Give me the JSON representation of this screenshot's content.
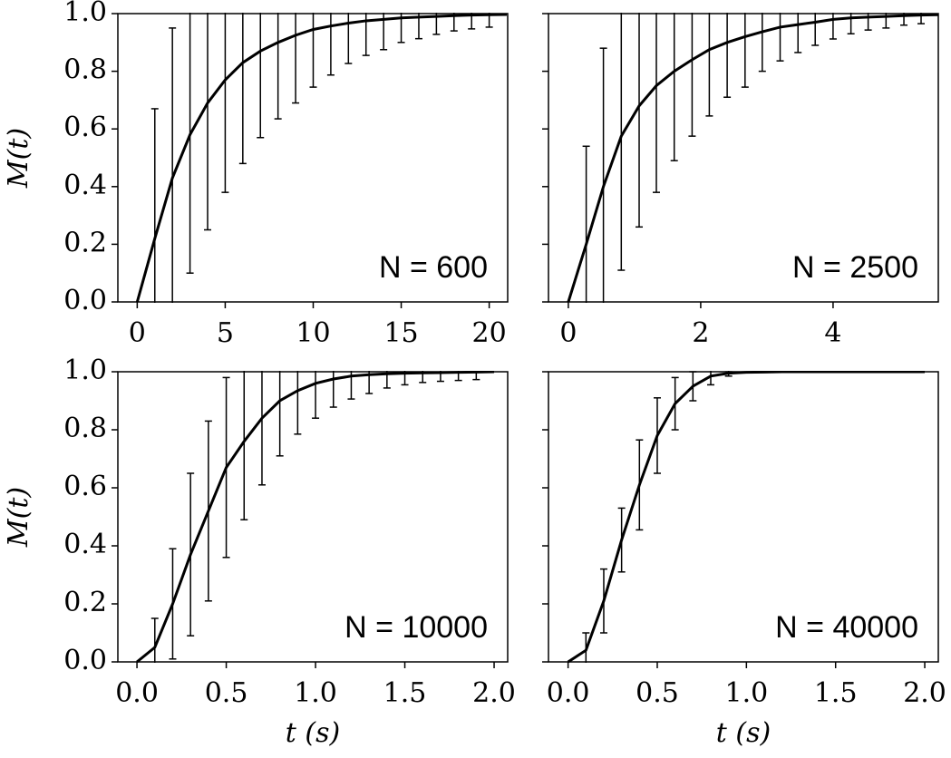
{
  "chart_data": [
    {
      "type": "line",
      "annotation": "N = 600",
      "ylabel": "M(t)",
      "show_ytick_labels": true,
      "x": [
        0,
        1,
        2,
        3,
        4,
        5,
        6,
        7,
        8,
        9,
        10,
        11,
        12,
        13,
        14,
        15,
        16,
        17,
        18,
        19,
        20,
        21
      ],
      "series": [
        {
          "color": "#000000",
          "values": [
            0,
            0.22,
            0.43,
            0.58,
            0.69,
            0.77,
            0.83,
            0.87,
            0.9,
            0.925,
            0.945,
            0.957,
            0.967,
            0.975,
            0.98,
            0.985,
            0.988,
            0.99,
            0.993,
            0.995,
            0.996,
            0.997
          ],
          "errors": [
            null,
            0.45,
            0.52,
            0.48,
            0.44,
            0.39,
            0.35,
            0.3,
            0.265,
            0.235,
            0.2,
            0.17,
            0.14,
            0.12,
            0.105,
            0.085,
            0.075,
            0.062,
            0.053,
            0.048,
            0.043,
            null
          ]
        }
      ],
      "xlim": [
        -1.1,
        21.05
      ],
      "ylim": [
        0,
        1
      ],
      "xticks": [
        0,
        5,
        10,
        15,
        20
      ],
      "yticks": [
        {
          "value": 0,
          "label": "0.0"
        },
        {
          "value": 0.2,
          "label": "0.2"
        },
        {
          "value": 0.4,
          "label": "0.4"
        },
        {
          "value": 0.6,
          "label": "0.6"
        },
        {
          "value": 0.8,
          "label": "0.8"
        },
        {
          "value": 1,
          "label": "1.0"
        }
      ]
    },
    {
      "type": "line",
      "annotation": "N = 2500",
      "show_ytick_labels": false,
      "x": [
        0,
        0.27,
        0.53,
        0.8,
        1.07,
        1.33,
        1.6,
        1.87,
        2.13,
        2.4,
        2.67,
        2.93,
        3.2,
        3.47,
        3.73,
        4.0,
        4.27,
        4.53,
        4.8,
        5.07,
        5.33,
        5.6
      ],
      "series": [
        {
          "color": "#000000",
          "values": [
            0,
            0.2,
            0.4,
            0.575,
            0.68,
            0.75,
            0.8,
            0.84,
            0.875,
            0.9,
            0.92,
            0.937,
            0.953,
            0.962,
            0.97,
            0.98,
            0.985,
            0.988,
            0.99,
            0.993,
            0.995,
            0.996
          ],
          "errors": [
            null,
            0.34,
            0.48,
            0.465,
            0.42,
            0.37,
            0.31,
            0.265,
            0.23,
            0.19,
            0.175,
            0.137,
            0.117,
            0.097,
            0.08,
            0.068,
            0.055,
            0.045,
            0.04,
            0.033,
            0.03,
            null
          ]
        }
      ],
      "xlim": [
        -0.3,
        5.59
      ],
      "ylim": [
        0,
        1
      ],
      "xticks": [
        0,
        2,
        4
      ],
      "yticks": [
        {
          "value": 0,
          "label": "0.0"
        },
        {
          "value": 0.2,
          "label": "0.2"
        },
        {
          "value": 0.4,
          "label": "0.4"
        },
        {
          "value": 0.6,
          "label": "0.6"
        },
        {
          "value": 0.8,
          "label": "0.8"
        },
        {
          "value": 1,
          "label": "1.0"
        }
      ]
    },
    {
      "type": "line",
      "annotation": "N = 10000",
      "ylabel": "M(t)",
      "xlabel": "t (s)",
      "show_ytick_labels": true,
      "x": [
        0,
        0.1,
        0.2,
        0.3,
        0.4,
        0.5,
        0.6,
        0.7,
        0.8,
        0.9,
        1.0,
        1.1,
        1.2,
        1.3,
        1.4,
        1.5,
        1.6,
        1.7,
        1.8,
        1.9,
        2.0
      ],
      "series": [
        {
          "color": "#000000",
          "values": [
            0,
            0.05,
            0.2,
            0.37,
            0.52,
            0.67,
            0.76,
            0.84,
            0.9,
            0.935,
            0.96,
            0.975,
            0.985,
            0.99,
            0.993,
            0.995,
            0.996,
            0.997,
            0.998,
            0.999,
            1.0
          ],
          "errors": [
            null,
            0.1,
            0.19,
            0.28,
            0.31,
            0.31,
            0.27,
            0.23,
            0.19,
            0.15,
            0.12,
            0.097,
            0.079,
            0.065,
            0.049,
            0.04,
            0.033,
            0.03,
            0.028,
            0.026,
            null
          ]
        }
      ],
      "xlim": [
        -0.107,
        2.076
      ],
      "ylim": [
        0,
        1
      ],
      "xticks": [
        {
          "value": 0,
          "label": "0.0"
        },
        {
          "value": 0.5,
          "label": "0.5"
        },
        {
          "value": 1,
          "label": "1.0"
        },
        {
          "value": 1.5,
          "label": "1.5"
        },
        {
          "value": 2,
          "label": "2.0"
        }
      ],
      "yticks": [
        {
          "value": 0,
          "label": "0.0"
        },
        {
          "value": 0.2,
          "label": "0.2"
        },
        {
          "value": 0.4,
          "label": "0.4"
        },
        {
          "value": 0.6,
          "label": "0.6"
        },
        {
          "value": 0.8,
          "label": "0.8"
        },
        {
          "value": 1,
          "label": "1.0"
        }
      ]
    },
    {
      "type": "line",
      "annotation": "N = 40000",
      "xlabel": "t (s)",
      "show_ytick_labels": false,
      "x": [
        0,
        0.1,
        0.2,
        0.3,
        0.4,
        0.5,
        0.6,
        0.7,
        0.8,
        0.9,
        1.0,
        1.1,
        1.2,
        1.3,
        1.4,
        1.5,
        1.6,
        1.7,
        1.8,
        1.9,
        2.0
      ],
      "series": [
        {
          "color": "#000000",
          "values": [
            0,
            0.04,
            0.21,
            0.42,
            0.61,
            0.78,
            0.89,
            0.95,
            0.985,
            0.995,
            0.998,
            0.999,
            1.0,
            1.0,
            1.0,
            1.0,
            1.0,
            1.0,
            1.0,
            1.0,
            1.0
          ],
          "errors": [
            null,
            0.06,
            0.11,
            0.11,
            0.155,
            0.13,
            0.09,
            0.05,
            0.03,
            0.01,
            null,
            null,
            null,
            null,
            null,
            null,
            null,
            null,
            null,
            null,
            null
          ]
        }
      ],
      "xlim": [
        -0.11,
        2.076
      ],
      "ylim": [
        0,
        1
      ],
      "xticks": [
        {
          "value": 0,
          "label": "0.0"
        },
        {
          "value": 0.5,
          "label": "0.5"
        },
        {
          "value": 1,
          "label": "1.0"
        },
        {
          "value": 1.5,
          "label": "1.5"
        },
        {
          "value": 2,
          "label": "2.0"
        }
      ],
      "yticks": [
        {
          "value": 0,
          "label": "0.0"
        },
        {
          "value": 0.2,
          "label": "0.2"
        },
        {
          "value": 0.4,
          "label": "0.4"
        },
        {
          "value": 0.6,
          "label": "0.6"
        },
        {
          "value": 0.8,
          "label": "0.8"
        },
        {
          "value": 1,
          "label": "1.0"
        }
      ]
    }
  ]
}
